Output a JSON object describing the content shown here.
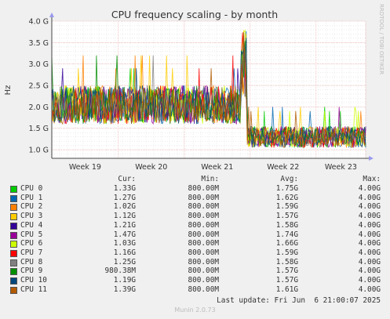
{
  "chart_data": {
    "type": "line",
    "title": "CPU frequency scaling - by month",
    "ylabel": "Hz",
    "side_label": "RRDTOOL / TOBI OETIKER",
    "ylim": [
      0.8,
      4.0
    ],
    "y_ticks": [
      1.0,
      1.5,
      2.0,
      2.5,
      3.0,
      3.5,
      4.0
    ],
    "y_tick_labels": [
      "1.0 G",
      "1.5 G",
      "2.0 G",
      "2.5 G",
      "3.0 G",
      "3.5 G",
      "4.0 G"
    ],
    "x_ticks": [
      "Week 19",
      "Week 20",
      "Week 21",
      "Week 22",
      "Week 23"
    ],
    "grid": true,
    "colors": {
      "background": "#f0f0f0",
      "plot_background": "#ffffff",
      "grid_major": "#e8a0a0",
      "grid_minor": "#d8d8d8",
      "frame": "#444444",
      "axis_arrow": "#9999ee"
    },
    "phases": [
      {
        "from": 0.0,
        "to": 0.6,
        "mean": 2.05,
        "amplitude": 0.45,
        "spikes": [
          3.2,
          2.9
        ]
      },
      {
        "from": 0.6,
        "to": 0.62,
        "mean": 3.0,
        "amplitude": 0.8,
        "spikes": [
          3.9
        ]
      },
      {
        "from": 0.62,
        "to": 1.0,
        "mean": 1.3,
        "amplitude": 0.25,
        "spikes": [
          1.9,
          2.0
        ]
      }
    ],
    "series": [
      {
        "name": "CPU 0",
        "color": "#00cc00",
        "cur": "1.33G",
        "min": "800.00M",
        "avg": "1.75G",
        "max": "4.00G"
      },
      {
        "name": "CPU 1",
        "color": "#0066b3",
        "cur": "1.27G",
        "min": "800.00M",
        "avg": "1.62G",
        "max": "4.00G"
      },
      {
        "name": "CPU 2",
        "color": "#ff8000",
        "cur": "1.02G",
        "min": "800.00M",
        "avg": "1.59G",
        "max": "4.00G"
      },
      {
        "name": "CPU 3",
        "color": "#ffcc00",
        "cur": "1.12G",
        "min": "800.00M",
        "avg": "1.57G",
        "max": "4.00G"
      },
      {
        "name": "CPU 4",
        "color": "#330099",
        "cur": "1.21G",
        "min": "800.00M",
        "avg": "1.58G",
        "max": "4.00G"
      },
      {
        "name": "CPU 5",
        "color": "#990099",
        "cur": "1.47G",
        "min": "800.00M",
        "avg": "1.74G",
        "max": "4.00G"
      },
      {
        "name": "CPU 6",
        "color": "#ccff00",
        "cur": "1.03G",
        "min": "800.00M",
        "avg": "1.66G",
        "max": "4.00G"
      },
      {
        "name": "CPU 7",
        "color": "#ff0000",
        "cur": "1.16G",
        "min": "800.00M",
        "avg": "1.59G",
        "max": "4.00G"
      },
      {
        "name": "CPU 8",
        "color": "#808080",
        "cur": "1.25G",
        "min": "800.00M",
        "avg": "1.58G",
        "max": "4.00G"
      },
      {
        "name": "CPU 9",
        "color": "#008f00",
        "cur": "980.38M",
        "min": "800.00M",
        "avg": "1.57G",
        "max": "4.00G"
      },
      {
        "name": "CPU 10",
        "color": "#00487d",
        "cur": "1.19G",
        "min": "800.00M",
        "avg": "1.57G",
        "max": "4.00G"
      },
      {
        "name": "CPU 11",
        "color": "#b35a00",
        "cur": "1.39G",
        "min": "800.00M",
        "avg": "1.61G",
        "max": "4.00G"
      }
    ]
  },
  "legend": {
    "headers": {
      "cur": "Cur:",
      "min": "Min:",
      "avg": "Avg:",
      "max": "Max:"
    }
  },
  "last_update": "Last update: Fri Jun  6 21:00:07 2025",
  "footer": "Munin 2.0.73"
}
